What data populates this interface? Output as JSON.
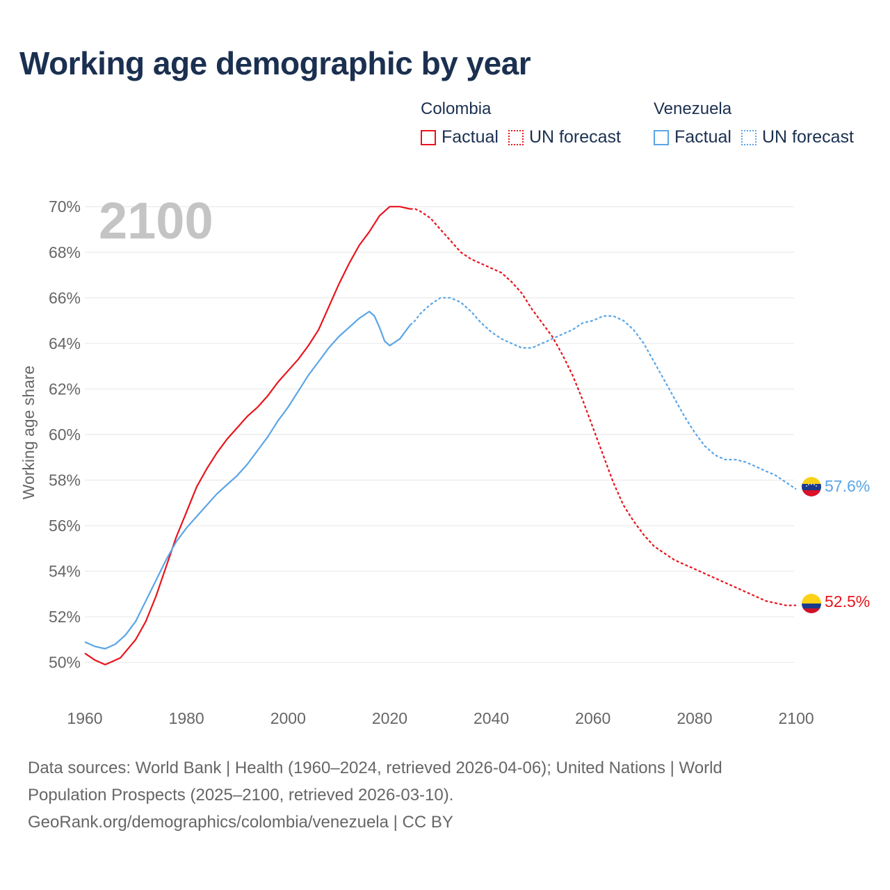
{
  "title": "Working age demographic by year",
  "legend": {
    "groups": [
      {
        "name": "Colombia",
        "color": "#e8141c",
        "items": [
          {
            "label": "Factual",
            "style": "solid"
          },
          {
            "label": "UN forecast",
            "style": "dotted"
          }
        ]
      },
      {
        "name": "Venezuela",
        "color": "#5aa5e6",
        "items": [
          {
            "label": "Factual",
            "style": "solid"
          },
          {
            "label": "UN forecast",
            "style": "dotted"
          }
        ]
      }
    ]
  },
  "chart_data": {
    "type": "line",
    "year_watermark": "2100",
    "ylabel": "Working age share",
    "xlim": [
      1960,
      2103
    ],
    "ylim": [
      48.8,
      70.8
    ],
    "x_ticks": [
      1960,
      1980,
      2000,
      2020,
      2040,
      2060,
      2080,
      2100
    ],
    "y_ticks": [
      50,
      52,
      54,
      56,
      58,
      60,
      62,
      64,
      66,
      68,
      70
    ],
    "y_tick_labels": [
      "50%",
      "52%",
      "54%",
      "56%",
      "58%",
      "60%",
      "62%",
      "64%",
      "66%",
      "68%",
      "70%"
    ],
    "factual_end_year": 2024,
    "series": [
      {
        "name": "Colombia",
        "color": "#e8141c",
        "end_label": "52.5%",
        "flag": "colombia",
        "points": [
          [
            1960,
            50.4
          ],
          [
            1962,
            50.1
          ],
          [
            1964,
            49.9
          ],
          [
            1965,
            50.0
          ],
          [
            1967,
            50.2
          ],
          [
            1970,
            51.0
          ],
          [
            1972,
            51.8
          ],
          [
            1974,
            52.9
          ],
          [
            1976,
            54.2
          ],
          [
            1978,
            55.5
          ],
          [
            1980,
            56.6
          ],
          [
            1982,
            57.7
          ],
          [
            1984,
            58.5
          ],
          [
            1986,
            59.2
          ],
          [
            1988,
            59.8
          ],
          [
            1990,
            60.3
          ],
          [
            1992,
            60.8
          ],
          [
            1994,
            61.2
          ],
          [
            1996,
            61.7
          ],
          [
            1998,
            62.3
          ],
          [
            2000,
            62.8
          ],
          [
            2002,
            63.3
          ],
          [
            2004,
            63.9
          ],
          [
            2006,
            64.6
          ],
          [
            2008,
            65.6
          ],
          [
            2010,
            66.6
          ],
          [
            2012,
            67.5
          ],
          [
            2014,
            68.3
          ],
          [
            2016,
            68.9
          ],
          [
            2018,
            69.6
          ],
          [
            2020,
            70.0
          ],
          [
            2022,
            70.0
          ],
          [
            2024,
            69.9
          ],
          [
            2025,
            69.9
          ],
          [
            2026,
            69.8
          ],
          [
            2028,
            69.5
          ],
          [
            2030,
            69.0
          ],
          [
            2032,
            68.5
          ],
          [
            2034,
            68.0
          ],
          [
            2036,
            67.7
          ],
          [
            2038,
            67.5
          ],
          [
            2040,
            67.3
          ],
          [
            2042,
            67.1
          ],
          [
            2044,
            66.7
          ],
          [
            2046,
            66.2
          ],
          [
            2048,
            65.5
          ],
          [
            2050,
            64.9
          ],
          [
            2052,
            64.3
          ],
          [
            2054,
            63.5
          ],
          [
            2056,
            62.6
          ],
          [
            2058,
            61.5
          ],
          [
            2060,
            60.3
          ],
          [
            2062,
            59.1
          ],
          [
            2064,
            57.9
          ],
          [
            2066,
            56.9
          ],
          [
            2068,
            56.2
          ],
          [
            2070,
            55.6
          ],
          [
            2072,
            55.1
          ],
          [
            2074,
            54.8
          ],
          [
            2076,
            54.5
          ],
          [
            2078,
            54.3
          ],
          [
            2080,
            54.1
          ],
          [
            2082,
            53.9
          ],
          [
            2084,
            53.7
          ],
          [
            2086,
            53.5
          ],
          [
            2088,
            53.3
          ],
          [
            2090,
            53.1
          ],
          [
            2092,
            52.9
          ],
          [
            2094,
            52.7
          ],
          [
            2096,
            52.6
          ],
          [
            2098,
            52.5
          ],
          [
            2100,
            52.5
          ]
        ]
      },
      {
        "name": "Venezuela",
        "color": "#5aa5e6",
        "end_label": "57.6%",
        "flag": "venezuela",
        "points": [
          [
            1960,
            50.9
          ],
          [
            1962,
            50.7
          ],
          [
            1964,
            50.6
          ],
          [
            1966,
            50.8
          ],
          [
            1968,
            51.2
          ],
          [
            1970,
            51.8
          ],
          [
            1972,
            52.7
          ],
          [
            1974,
            53.6
          ],
          [
            1976,
            54.5
          ],
          [
            1978,
            55.3
          ],
          [
            1980,
            55.9
          ],
          [
            1982,
            56.4
          ],
          [
            1984,
            56.9
          ],
          [
            1986,
            57.4
          ],
          [
            1988,
            57.8
          ],
          [
            1990,
            58.2
          ],
          [
            1992,
            58.7
          ],
          [
            1994,
            59.3
          ],
          [
            1996,
            59.9
          ],
          [
            1998,
            60.6
          ],
          [
            2000,
            61.2
          ],
          [
            2002,
            61.9
          ],
          [
            2004,
            62.6
          ],
          [
            2006,
            63.2
          ],
          [
            2008,
            63.8
          ],
          [
            2010,
            64.3
          ],
          [
            2012,
            64.7
          ],
          [
            2014,
            65.1
          ],
          [
            2016,
            65.4
          ],
          [
            2017,
            65.2
          ],
          [
            2018,
            64.7
          ],
          [
            2019,
            64.1
          ],
          [
            2020,
            63.9
          ],
          [
            2022,
            64.2
          ],
          [
            2024,
            64.8
          ],
          [
            2025,
            65.0
          ],
          [
            2026,
            65.3
          ],
          [
            2028,
            65.7
          ],
          [
            2030,
            66.0
          ],
          [
            2032,
            66.0
          ],
          [
            2034,
            65.8
          ],
          [
            2036,
            65.4
          ],
          [
            2038,
            64.9
          ],
          [
            2040,
            64.5
          ],
          [
            2042,
            64.2
          ],
          [
            2044,
            64.0
          ],
          [
            2046,
            63.8
          ],
          [
            2048,
            63.8
          ],
          [
            2050,
            64.0
          ],
          [
            2052,
            64.2
          ],
          [
            2054,
            64.4
          ],
          [
            2056,
            64.6
          ],
          [
            2058,
            64.9
          ],
          [
            2060,
            65.0
          ],
          [
            2062,
            65.2
          ],
          [
            2064,
            65.2
          ],
          [
            2066,
            65.0
          ],
          [
            2068,
            64.6
          ],
          [
            2070,
            64.0
          ],
          [
            2072,
            63.2
          ],
          [
            2074,
            62.4
          ],
          [
            2076,
            61.6
          ],
          [
            2078,
            60.8
          ],
          [
            2080,
            60.1
          ],
          [
            2082,
            59.5
          ],
          [
            2084,
            59.1
          ],
          [
            2086,
            58.9
          ],
          [
            2088,
            58.9
          ],
          [
            2090,
            58.8
          ],
          [
            2092,
            58.6
          ],
          [
            2094,
            58.4
          ],
          [
            2096,
            58.2
          ],
          [
            2098,
            57.9
          ],
          [
            2100,
            57.6
          ]
        ]
      }
    ]
  },
  "footer": {
    "line1": "Data sources: World Bank | Health (1960–2024, retrieved 2026-04-06); United Nations | World",
    "line2": "Population Prospects (2025–2100, retrieved 2026-03-10).",
    "line3": "GeoRank.org/demographics/colombia/venezuela | CC BY"
  }
}
